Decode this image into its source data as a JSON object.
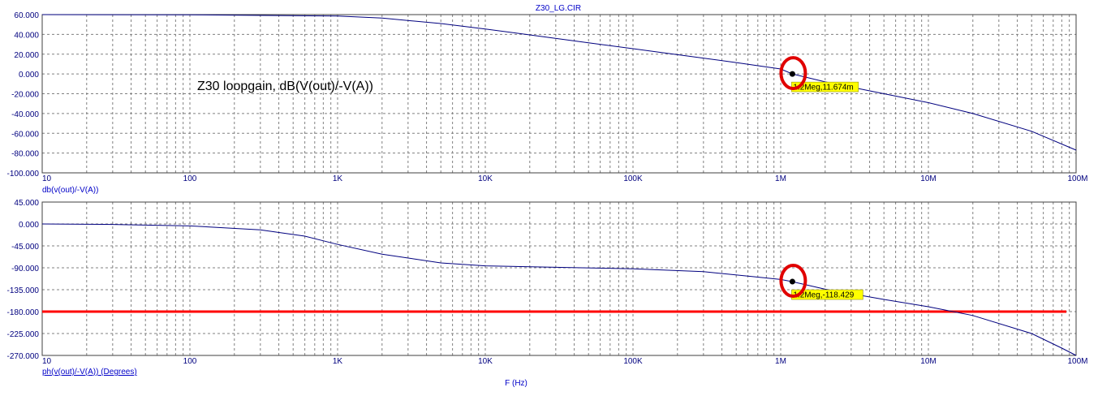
{
  "window_title": "Z30_LG.CIR",
  "x_axis_label": "F (Hz)",
  "colors": {
    "curve": "#00007f",
    "grid": "#808080",
    "axis_text": "#00007f",
    "axis_label": "#0000c8",
    "reference_line": "#ff0000",
    "marker_circle": "#e00000",
    "marker_label_bg": "#ffff00"
  },
  "chart_data": [
    {
      "type": "line",
      "title": "",
      "annotation": "Z30 loopgain, dB(V(out)/-V(A))",
      "ylabel": "db(v(out)/-V(A))",
      "xlabel": "",
      "x_scale": "log",
      "xlim": [
        10,
        100000000
      ],
      "ylim": [
        -100,
        60
      ],
      "grid": true,
      "y_ticks": [
        "60.000",
        "40.000",
        "20.000",
        "0.000",
        "-20.000",
        "-40.000",
        "-60.000",
        "-80.000",
        "-100.000"
      ],
      "x_ticks": [
        "10",
        "100",
        "1K",
        "10K",
        "100K",
        "1M",
        "10M",
        "100M"
      ],
      "series": [
        {
          "x": [
            10,
            100,
            1000,
            2000,
            5000,
            10000,
            20000,
            50000,
            100000,
            200000,
            500000,
            1000000,
            1200000,
            2000000,
            5000000,
            10000000,
            20000000,
            50000000,
            100000000
          ],
          "y": [
            60,
            59.8,
            58.5,
            56.5,
            51,
            45.5,
            39.5,
            31.5,
            25.5,
            19.5,
            11.5,
            5,
            0.012,
            -8,
            -20,
            -29,
            -40,
            -58,
            -77
          ]
        }
      ],
      "marker": {
        "label": "1.2Meg,11.674m",
        "x": 1200000,
        "y": 0.011674
      }
    },
    {
      "type": "line",
      "title": "",
      "ylabel": "ph(v(out)/-V(A)) (Degrees)",
      "xlabel": "F (Hz)",
      "x_scale": "log",
      "xlim": [
        10,
        100000000
      ],
      "ylim": [
        -270,
        45
      ],
      "grid": true,
      "y_ticks": [
        "45.000",
        "0.000",
        "-45.000",
        "-90.000",
        "-135.000",
        "-180.000",
        "-225.000",
        "-270.000"
      ],
      "x_ticks": [
        "10",
        "100",
        "1K",
        "10K",
        "100K",
        "1M",
        "10M",
        "100M"
      ],
      "series": [
        {
          "x": [
            10,
            30,
            100,
            300,
            600,
            1000,
            2000,
            5000,
            10000,
            30000,
            100000,
            300000,
            600000,
            1000000,
            1200000,
            2000000,
            5000000,
            10000000,
            20000000,
            50000000,
            80000000,
            100000000
          ],
          "y": [
            0,
            -1,
            -4,
            -12,
            -25,
            -42,
            -62,
            -80,
            -86,
            -89,
            -92,
            -98,
            -107,
            -114,
            -118.43,
            -134,
            -155,
            -170,
            -188,
            -225,
            -255,
            -270
          ]
        }
      ],
      "reference_line": {
        "y": -180
      },
      "marker": {
        "label": "1.2Meg,-118.429",
        "x": 1200000,
        "y": -118.429
      }
    }
  ]
}
